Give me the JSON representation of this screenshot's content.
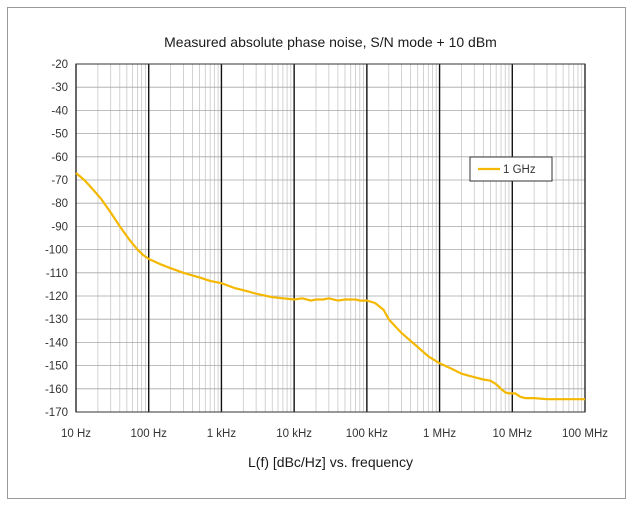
{
  "chart_data": {
    "type": "line",
    "title": "Measured absolute phase noise, S/N mode + 10 dBm",
    "xlabel": "L(f) [dBc/Hz] vs. frequency",
    "ylabel": "",
    "x_scale": "log",
    "xlim": [
      10,
      100000000
    ],
    "ylim": [
      -170,
      -20
    ],
    "x_ticks": [
      10,
      100,
      1000,
      10000,
      100000,
      1000000,
      10000000,
      100000000
    ],
    "x_tick_labels": [
      "10 Hz",
      "100 Hz",
      "1 kHz",
      "10 kHz",
      "100 kHz",
      "1 MHz",
      "10 MHz",
      "100 MHz"
    ],
    "y_ticks": [
      -20,
      -30,
      -40,
      -50,
      -60,
      -70,
      -80,
      -90,
      -100,
      -110,
      -120,
      -130,
      -140,
      -150,
      -160,
      -170
    ],
    "y_tick_labels": [
      "-20",
      "-30",
      "-40",
      "-50",
      "-60",
      "-70",
      "-80",
      "-90",
      "-100",
      "-110",
      "-120",
      "-130",
      "-140",
      "-150",
      "-160",
      "-170"
    ],
    "grid": true,
    "legend_position": "right",
    "series": [
      {
        "name": "1 GHz",
        "color": "#f5b800",
        "x": [
          10,
          13,
          17,
          22,
          30,
          40,
          55,
          70,
          85,
          100,
          150,
          200,
          300,
          500,
          700,
          1000,
          1500,
          2000,
          3000,
          5000,
          7000,
          10000,
          13000,
          17000,
          20000,
          25000,
          30000,
          40000,
          50000,
          60000,
          70000,
          80000,
          100000,
          130000,
          170000,
          200000,
          300000,
          500000,
          700000,
          1000000,
          1500000,
          2000000,
          3000000,
          4000000,
          5000000,
          6000000,
          7000000,
          8000000,
          9000000,
          10000000,
          11000000,
          13000000,
          15000000,
          20000000,
          30000000,
          50000000,
          70000000,
          100000000
        ],
        "y": [
          -67,
          -70,
          -74,
          -78,
          -84,
          -90,
          -96,
          -100,
          -102.5,
          -104,
          -106.5,
          -108,
          -110,
          -112,
          -113.5,
          -114.5,
          -116.5,
          -117.5,
          -119,
          -120.5,
          -121,
          -121.5,
          -121,
          -122,
          -121.5,
          -121.5,
          -121,
          -122,
          -121.5,
          -121.5,
          -121.5,
          -122,
          -122,
          -123,
          -126,
          -130,
          -136,
          -142,
          -146,
          -149,
          -151.5,
          -153.5,
          -155,
          -156,
          -156.5,
          -158,
          -160,
          -161.5,
          -162,
          -162,
          -162,
          -163.5,
          -164,
          -164,
          -164.5,
          -164.5,
          -164.5,
          -164.5
        ]
      }
    ]
  }
}
